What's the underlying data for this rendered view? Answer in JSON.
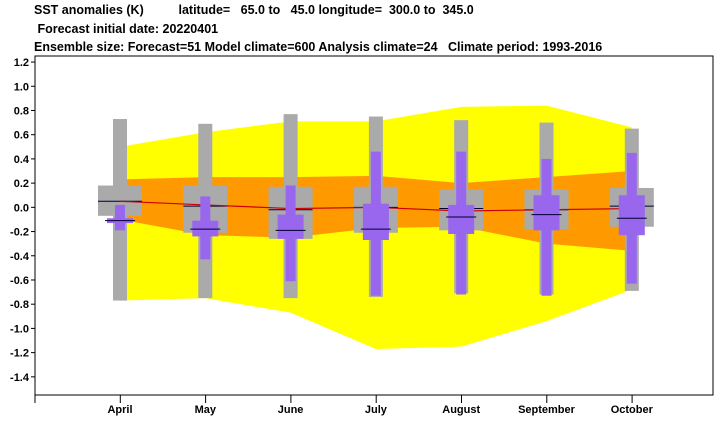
{
  "header": {
    "line1": "SST anomalies (K)          latitude=   65.0 to   45.0 longitude=  300.0 to  345.0",
    "line2": " Forecast initial date: 20220401",
    "line3": "Ensemble size: Forecast=51 Model climate=600 Analysis climate=24   Climate period: 1993-2016"
  },
  "chart_data": {
    "type": "box",
    "title": "SST anomalies (K)",
    "ylabel": "",
    "xlabel": "",
    "ylim": [
      -1.55,
      1.25
    ],
    "yticks": [
      -1.4,
      -1.2,
      -1.0,
      -0.8,
      -0.6,
      -0.4,
      -0.2,
      0.0,
      0.2,
      0.4,
      0.6,
      0.8,
      1.0,
      1.2
    ],
    "categories": [
      "April",
      "May",
      "June",
      "July",
      "August",
      "September",
      "October"
    ],
    "grid": false,
    "colors": {
      "extreme_band": "#ffff00",
      "inner_band": "#ff9900",
      "model_climate_box": "#aaaaaa",
      "forecast_box": "#9966ee",
      "climate_mean_line": "#cc0000",
      "median_line": "#000033"
    },
    "climate_band_outer": {
      "upper": [
        0.5,
        0.62,
        0.71,
        0.71,
        0.83,
        0.84,
        0.66
      ],
      "lower": [
        -0.77,
        -0.75,
        -0.87,
        -1.17,
        -1.15,
        -0.94,
        -0.68
      ]
    },
    "climate_band_inner": {
      "upper": [
        0.23,
        0.25,
        0.25,
        0.26,
        0.2,
        0.25,
        0.3
      ],
      "lower": [
        -0.1,
        -0.23,
        -0.25,
        -0.17,
        -0.16,
        -0.3,
        -0.36
      ]
    },
    "climate_mean": [
      0.05,
      0.02,
      -0.01,
      0.0,
      -0.03,
      -0.02,
      -0.01
    ],
    "model_climate": [
      {
        "min": -0.77,
        "p10": -0.07,
        "median": 0.05,
        "p90": 0.18,
        "max": 0.73
      },
      {
        "min": -0.75,
        "p10": -0.21,
        "median": 0.01,
        "p90": 0.18,
        "max": 0.69
      },
      {
        "min": -0.75,
        "p10": -0.26,
        "median": -0.02,
        "p90": 0.17,
        "max": 0.77
      },
      {
        "min": -0.74,
        "p10": -0.21,
        "median": 0.0,
        "p90": 0.17,
        "max": 0.75
      },
      {
        "min": -0.71,
        "p10": -0.19,
        "median": -0.01,
        "p90": 0.15,
        "max": 0.72
      },
      {
        "min": -0.72,
        "p10": -0.18,
        "median": -0.02,
        "p90": 0.15,
        "max": 0.7
      },
      {
        "min": -0.69,
        "p10": -0.16,
        "median": 0.01,
        "p90": 0.16,
        "max": 0.65
      }
    ],
    "forecast": [
      {
        "min": -0.19,
        "p25": -0.13,
        "median": -0.11,
        "p75": -0.09,
        "max": 0.02
      },
      {
        "min": -0.43,
        "p25": -0.24,
        "median": -0.18,
        "p75": -0.11,
        "max": 0.09
      },
      {
        "min": -0.61,
        "p25": -0.26,
        "median": -0.19,
        "p75": -0.06,
        "max": 0.18
      },
      {
        "min": -0.73,
        "p25": -0.27,
        "median": -0.18,
        "p75": 0.03,
        "max": 0.46
      },
      {
        "min": -0.72,
        "p25": -0.22,
        "median": -0.08,
        "p75": 0.02,
        "max": 0.46
      },
      {
        "min": -0.73,
        "p25": -0.19,
        "median": -0.06,
        "p75": 0.1,
        "max": 0.4
      },
      {
        "min": -0.63,
        "p25": -0.23,
        "median": -0.09,
        "p75": 0.1,
        "max": 0.45
      }
    ]
  }
}
